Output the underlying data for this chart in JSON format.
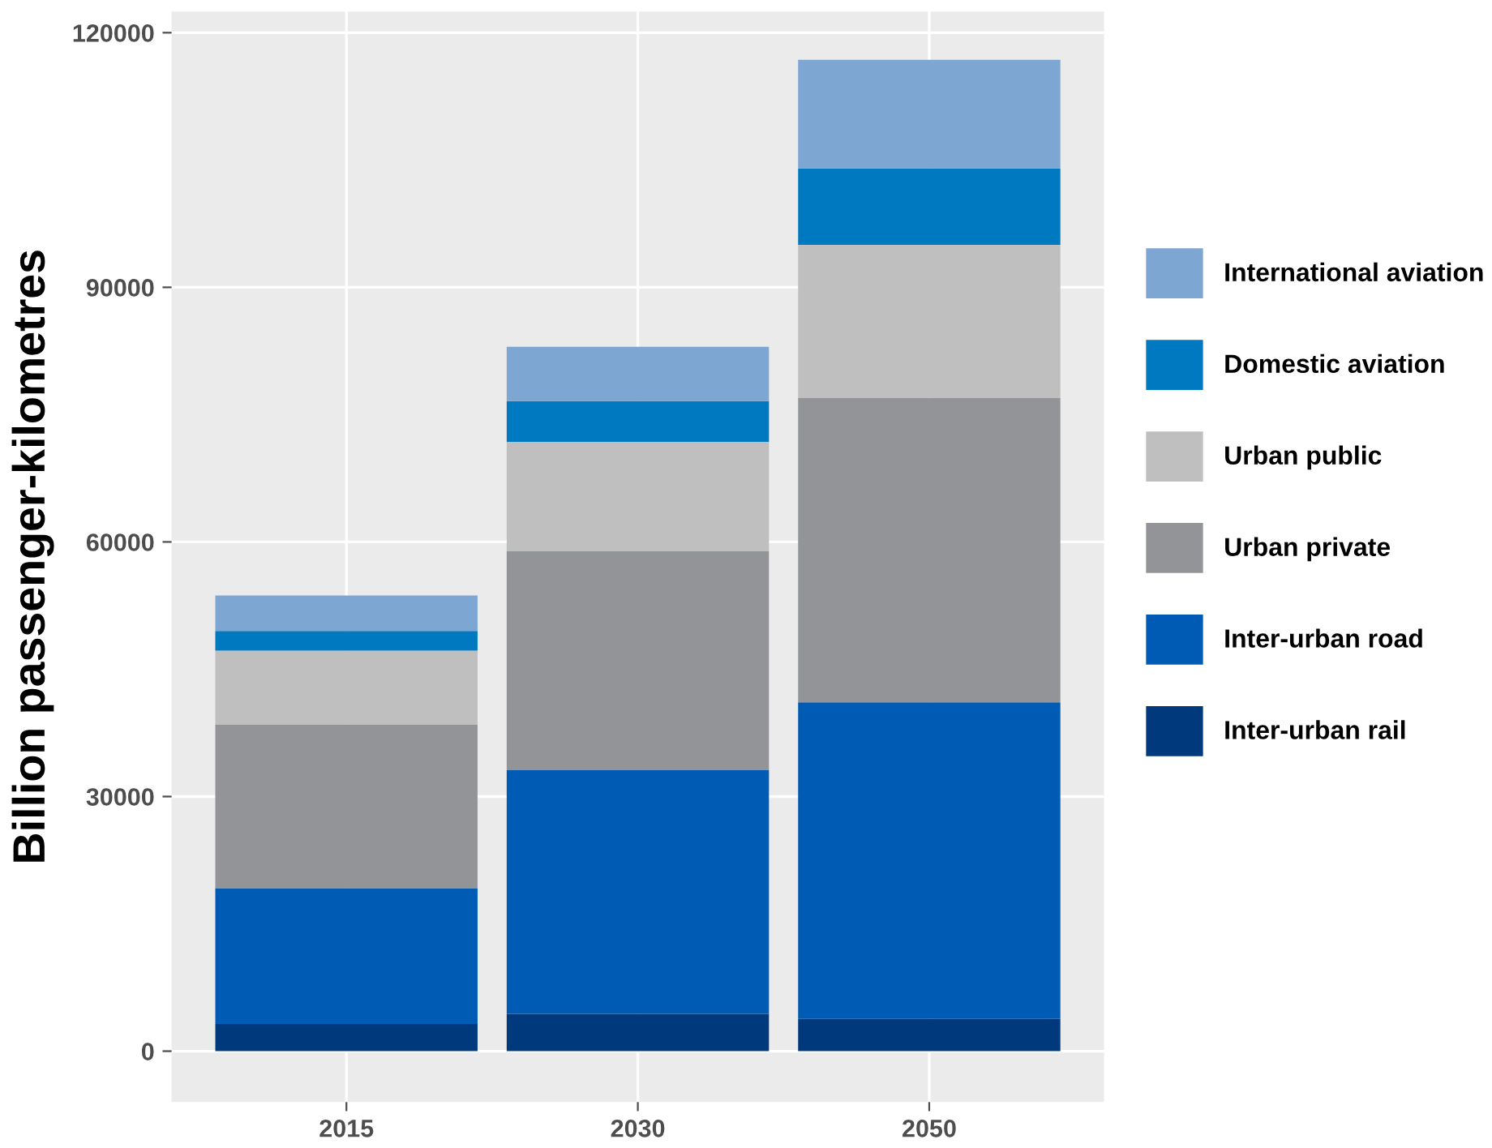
{
  "chart_data": {
    "type": "bar",
    "stacked": true,
    "ylabel": "Billion passenger-kilometres",
    "categories": [
      "2015",
      "2030",
      "2050"
    ],
    "series": [
      {
        "name": "Inter-urban rail",
        "color": "#003a7d",
        "values": [
          3200,
          4400,
          3800
        ]
      },
      {
        "name": "Inter-urban road",
        "color": "#005bb5",
        "values": [
          16000,
          28700,
          37300
        ]
      },
      {
        "name": "Urban private",
        "color": "#929497",
        "values": [
          19300,
          25800,
          35900
        ]
      },
      {
        "name": "Urban public",
        "color": "#bfbfbf",
        "values": [
          8700,
          12900,
          18000
        ]
      },
      {
        "name": "Domestic aviation",
        "color": "#0079c1",
        "values": [
          2300,
          4800,
          9000
        ]
      },
      {
        "name": "International aviation",
        "color": "#7ea6d3",
        "values": [
          4200,
          6400,
          12800
        ]
      }
    ],
    "ylim": [
      -6000,
      122500
    ],
    "yticks": [
      0,
      30000,
      60000,
      90000,
      120000
    ],
    "grid": true,
    "legend": "right"
  }
}
